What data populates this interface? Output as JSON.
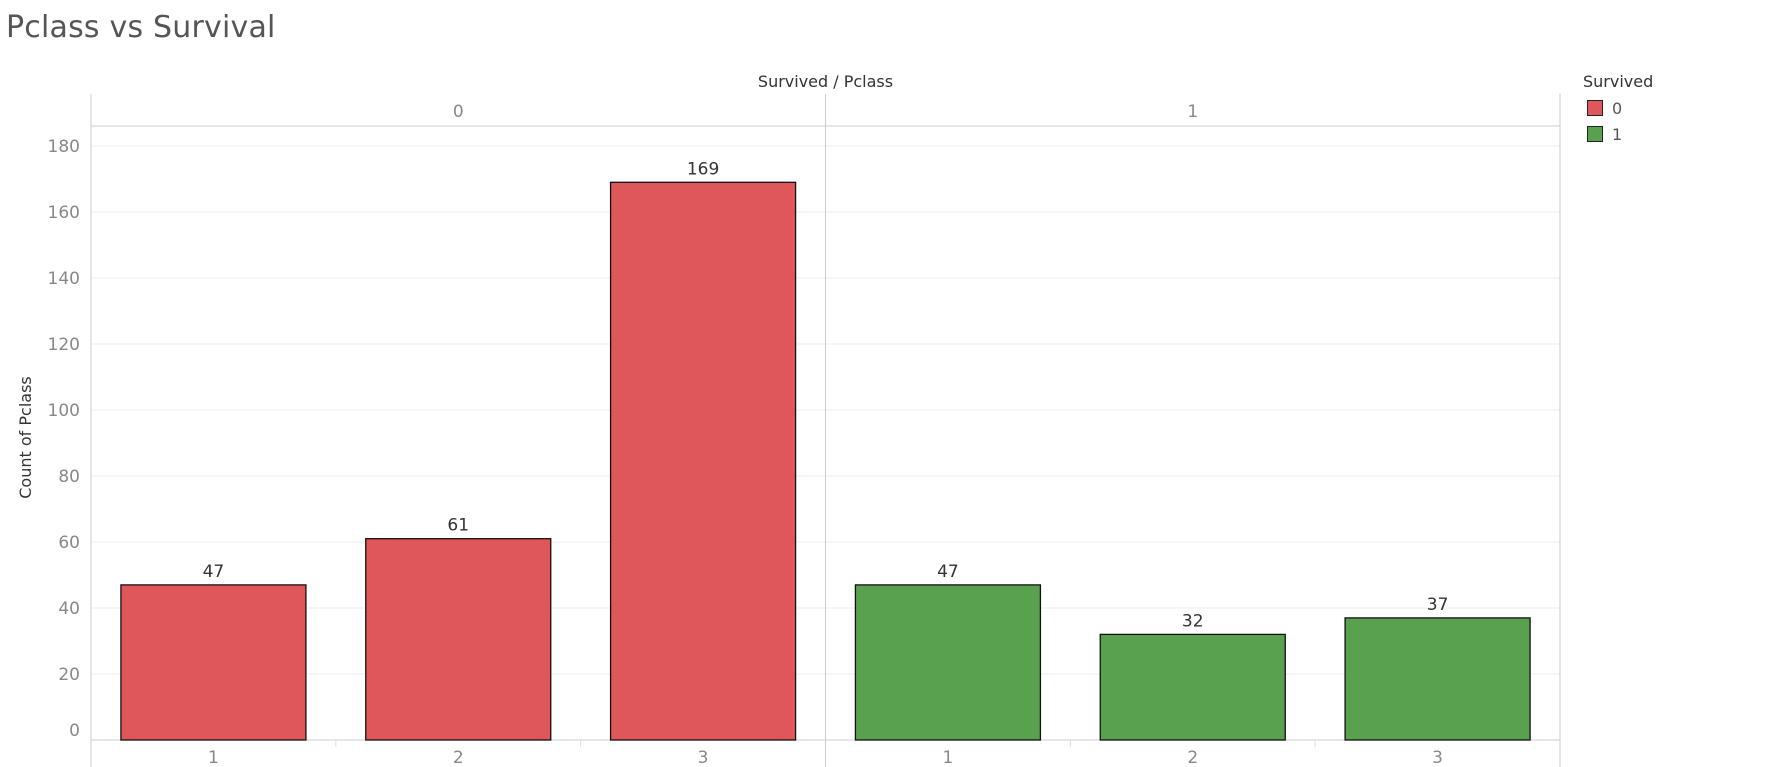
{
  "title": "Pclass vs Survival",
  "chart_data": {
    "type": "bar",
    "header": "Survived / Pclass",
    "ylabel": "Count of Pclass",
    "ylim": [
      0,
      190
    ],
    "yticks": [
      0,
      20,
      40,
      60,
      80,
      100,
      120,
      140,
      160,
      180
    ],
    "panes": [
      {
        "label": "0",
        "categories": [
          "1",
          "2",
          "3"
        ],
        "values": [
          47,
          61,
          169
        ],
        "color": "#e0575b"
      },
      {
        "label": "1",
        "categories": [
          "1",
          "2",
          "3"
        ],
        "values": [
          47,
          32,
          37
        ],
        "color": "#59a14f"
      }
    ],
    "grid": true,
    "legend": {
      "position": "top-right",
      "title": "Survived",
      "items": [
        {
          "label": "0",
          "color": "#e0575b"
        },
        {
          "label": "1",
          "color": "#59a14f"
        }
      ]
    }
  }
}
